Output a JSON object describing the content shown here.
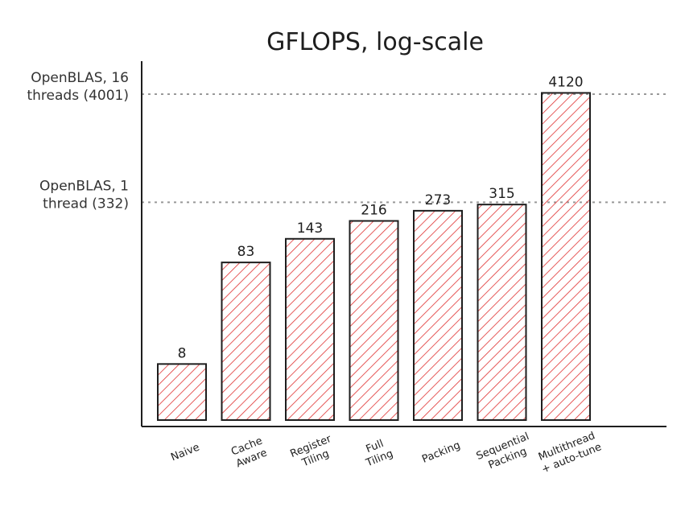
{
  "chart_data": {
    "type": "bar",
    "title": "GFLOPS, log-scale",
    "yscale": "log",
    "ylim": [
      2.2,
      5000
    ],
    "categories": [
      "Naive",
      "Cache Aware",
      "Register Tiling",
      "Full Tiling",
      "Packing",
      "Sequential Packing",
      "Multithread + auto-tune"
    ],
    "category_lines": [
      [
        "Naive"
      ],
      [
        "Cache",
        "Aware"
      ],
      [
        "Register",
        "Tiling"
      ],
      [
        "Full",
        "Tiling"
      ],
      [
        "Packing"
      ],
      [
        "Sequential",
        "Packing"
      ],
      [
        "Multithread",
        "+ auto-tune"
      ]
    ],
    "values": [
      8,
      83,
      143,
      216,
      273,
      315,
      4120
    ],
    "value_labels": [
      "8",
      "83",
      "143",
      "216",
      "273",
      "315",
      "4120"
    ],
    "reference_lines": [
      {
        "value": 4001,
        "label_lines": [
          "OpenBLAS, 16",
          "threads (4001)"
        ]
      },
      {
        "value": 332,
        "label_lines": [
          "OpenBLAS, 1",
          "thread (332)"
        ]
      }
    ],
    "grid": false,
    "colors": {
      "bar_hatch": "#e03131",
      "bar_stroke": "#1e1e1e",
      "axis": "#1e1e1e",
      "reference_line": "#999999"
    }
  }
}
